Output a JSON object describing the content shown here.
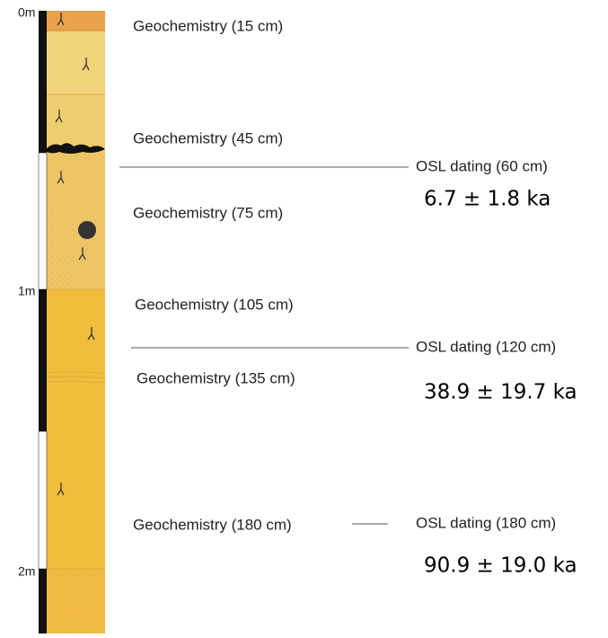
{
  "scale": {
    "labels": [
      "0m",
      "1m",
      "2m"
    ]
  },
  "geochemistry": [
    "Geochemistry (15 cm)",
    "Geochemistry (45 cm)",
    "Geochemistry (75 cm)",
    "Geochemistry (105 cm)",
    "Geochemistry (135 cm)",
    "Geochemistry (180 cm)"
  ],
  "osl": [
    {
      "label": "OSL dating (60 cm)",
      "age": "6.7 ± 1.8 ka"
    },
    {
      "label": "OSL dating (120 cm)",
      "age": "38.9 ± 19.7 ka"
    },
    {
      "label": "OSL dating (180 cm)",
      "age": "90.9 ± 19.0 ka"
    }
  ]
}
